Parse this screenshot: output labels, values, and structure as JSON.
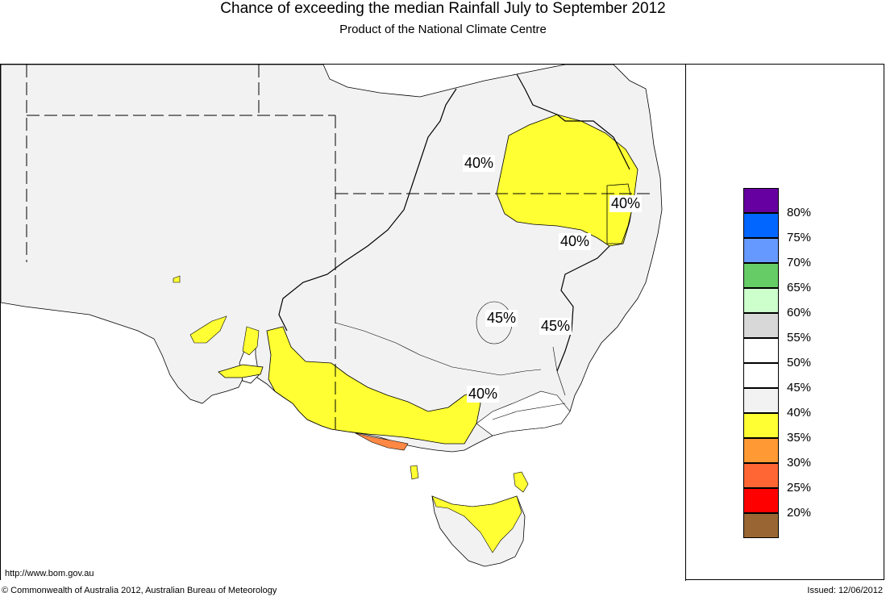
{
  "header": {
    "title": "Chance of exceeding the median Rainfall July to September 2012",
    "subtitle": "Product of the National Climate Centre"
  },
  "map": {
    "region": "South-eastern Australia",
    "contour_labels": [
      {
        "text": "40%"
      },
      {
        "text": "40%"
      },
      {
        "text": "40%"
      },
      {
        "text": "45%"
      },
      {
        "text": "45%"
      },
      {
        "text": "40%"
      }
    ],
    "colors": {
      "land_background": "#f2f2f2",
      "ocean": "#ffffff",
      "band_35_40": "#ffff33",
      "band_30_35": "#ff8844"
    }
  },
  "legend": {
    "items": [
      {
        "label": "80%",
        "color": "#6600a0"
      },
      {
        "label": "75%",
        "color": "#0066ff"
      },
      {
        "label": "70%",
        "color": "#6699ff"
      },
      {
        "label": "65%",
        "color": "#66cc66"
      },
      {
        "label": "60%",
        "color": "#ccffcc"
      },
      {
        "label": "55%",
        "color": "#d8d8d8"
      },
      {
        "label": "50%",
        "color": "#ffffff"
      },
      {
        "label": "45%",
        "color": "#ffffff"
      },
      {
        "label": "40%",
        "color": "#f2f2f2"
      },
      {
        "label": "35%",
        "color": "#ffff33"
      },
      {
        "label": "30%",
        "color": "#ff9933"
      },
      {
        "label": "25%",
        "color": "#ff6633"
      },
      {
        "label": "20%",
        "color": "#ff0000"
      },
      {
        "label": "",
        "color": "#996633"
      }
    ]
  },
  "footer": {
    "url": "http://www.bom.gov.au",
    "copyright": "© Commonwealth of Australia 2012, Australian Bureau of Meteorology",
    "issued": "Issued: 12/06/2012"
  }
}
